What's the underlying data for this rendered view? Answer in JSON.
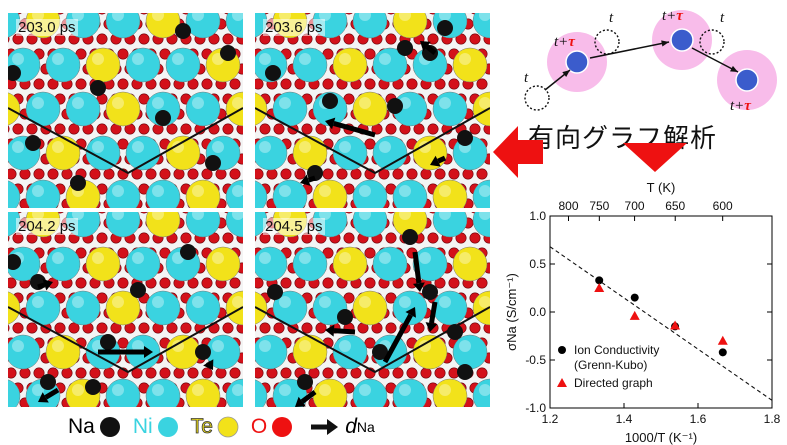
{
  "panels": [
    {
      "time_label": "203.0 ps"
    },
    {
      "time_label": "203.6 ps"
    },
    {
      "time_label": "204.2 ps"
    },
    {
      "time_label": "204.5 ps"
    }
  ],
  "legend": {
    "na": "Na",
    "ni": "Ni",
    "te": "Te",
    "o": "O",
    "d_main": "d",
    "d_sub": "Na"
  },
  "colors": {
    "na": "#111111",
    "ni": "#3ad3e0",
    "te": "#f2e21a",
    "o": "#d3111a",
    "highlight": "#ee1111",
    "node_glow": "#f7b0e6",
    "node_core": "#3b5ccc"
  },
  "graph_labels": {
    "t": "t",
    "t_plus": "t+",
    "tau": "τ"
  },
  "title_jp": "有向グラフ解析",
  "chart_data": {
    "type": "scatter",
    "xlabel": "1000/T (K⁻¹)",
    "ylabel": "σNa (S/cm⁻¹)",
    "top_axis_label": "T (K)",
    "top_ticks": [
      "800",
      "750",
      "700",
      "650",
      "600"
    ],
    "top_tick_values": [
      800,
      750,
      700,
      650,
      600
    ],
    "x_ticks": [
      "1.2",
      "1.4",
      "1.6",
      "1.8"
    ],
    "y_ticks": [
      "-1.0",
      "-0.5",
      "0.0",
      "0.5",
      "1.0"
    ],
    "xlim": [
      1.2,
      1.8
    ],
    "ylim": [
      -1.0,
      1.0
    ],
    "series": [
      {
        "name": "Ion Conductivity",
        "name2": "(Grenn-Kubo)",
        "marker": "circle",
        "color": "#000000",
        "x": [
          1.333,
          1.429,
          1.538,
          1.667
        ],
        "y": [
          0.33,
          0.15,
          -0.15,
          -0.42
        ]
      },
      {
        "name": "Directed graph",
        "marker": "triangle",
        "color": "#ee1111",
        "x": [
          1.333,
          1.429,
          1.538,
          1.667
        ],
        "y": [
          0.25,
          -0.04,
          -0.14,
          -0.3
        ]
      }
    ],
    "fit_line": {
      "x": [
        1.2,
        1.8
      ],
      "y": [
        0.68,
        -0.92
      ],
      "style": "dashed"
    },
    "grid": false,
    "legend_position": "bottom-left"
  }
}
